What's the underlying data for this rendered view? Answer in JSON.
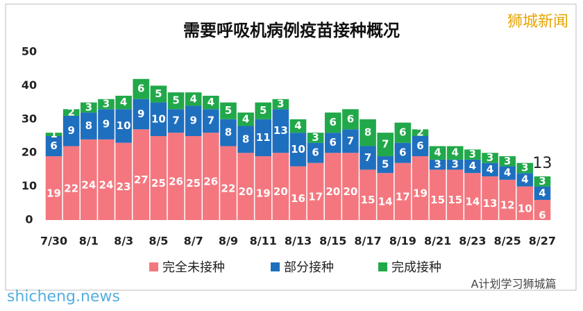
{
  "chart_data": {
    "type": "stacked-bar",
    "title": "需要呼吸机病例疫苗接种概况",
    "categories": [
      "7/30",
      null,
      "8/1",
      null,
      "8/3",
      null,
      "8/5",
      null,
      "8/7",
      null,
      "8/9",
      null,
      "8/11",
      null,
      "8/13",
      null,
      "8/15",
      null,
      "8/17",
      null,
      "8/19",
      null,
      "8/21",
      null,
      "8/23",
      null,
      "8/25",
      null,
      "8/27"
    ],
    "series": [
      {
        "name": "完全未接种",
        "color": "#f4777f",
        "values": [
          19,
          22,
          24,
          24,
          23,
          27,
          25,
          26,
          25,
          26,
          22,
          20,
          19,
          20,
          16,
          17,
          20,
          20,
          15,
          14,
          17,
          19,
          15,
          15,
          14,
          13,
          12,
          10,
          6
        ]
      },
      {
        "name": "部分接种",
        "color": "#1f6fbf",
        "values": [
          6,
          9,
          8,
          9,
          10,
          9,
          10,
          7,
          9,
          7,
          8,
          8,
          11,
          13,
          10,
          6,
          6,
          7,
          7,
          5,
          6,
          6,
          3,
          3,
          4,
          4,
          4,
          4,
          4
        ]
      },
      {
        "name": "完成接种",
        "color": "#21a84a",
        "values": [
          1,
          2,
          3,
          3,
          4,
          6,
          5,
          5,
          4,
          4,
          5,
          4,
          5,
          3,
          4,
          3,
          6,
          6,
          8,
          7,
          6,
          2,
          4,
          4,
          3,
          3,
          3,
          3,
          3
        ]
      }
    ],
    "annotation": "13",
    "ylim": [
      0,
      50
    ],
    "yticks": [
      0,
      10,
      20,
      30,
      40,
      50
    ],
    "grid": false,
    "watermark": "狮城新闻",
    "site": "shicheng.news",
    "account": "A计划学习狮城篇"
  }
}
